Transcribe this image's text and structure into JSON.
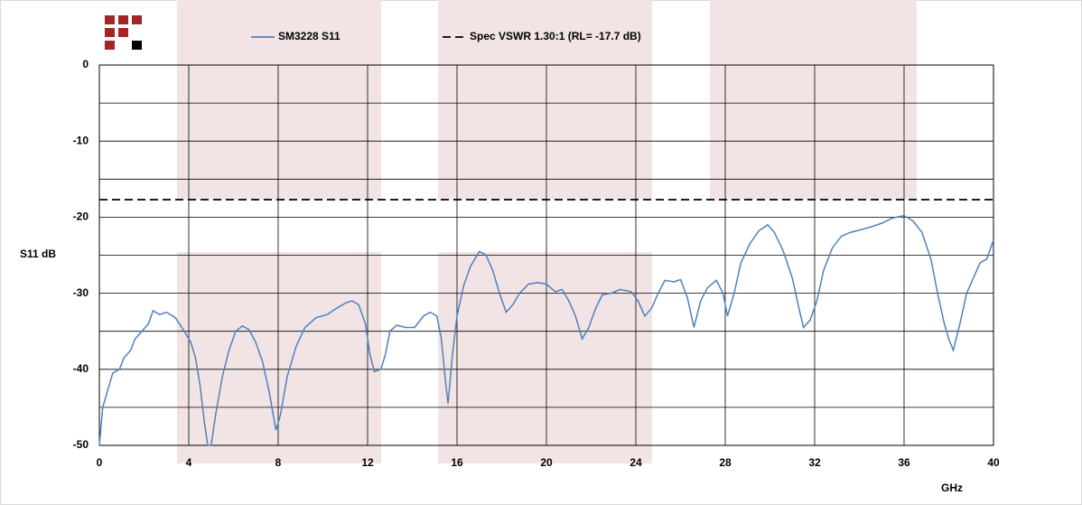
{
  "chart_data": {
    "type": "line",
    "y_label": "S11 dB",
    "x_label": "GHz",
    "xlim": [
      0,
      40
    ],
    "xticks": [
      0,
      4,
      8,
      12,
      16,
      20,
      24,
      28,
      32,
      36,
      40
    ],
    "ylim": [
      -50,
      0
    ],
    "yticks": [
      0,
      -10,
      -20,
      -30,
      -40,
      -50
    ],
    "y_minor_grid": [
      -5,
      -15,
      -25,
      -35,
      -45
    ],
    "grid": true,
    "series": [
      {
        "name": "SM3228 S11",
        "color": "#4f81bd",
        "dash": false,
        "x": [
          0,
          0.15,
          0.4,
          0.6,
          0.9,
          1.1,
          1.4,
          1.6,
          1.9,
          2.2,
          2.4,
          2.7,
          3.0,
          3.4,
          3.8,
          4.1,
          4.3,
          4.5,
          4.7,
          4.85,
          5.0,
          5.2,
          5.5,
          5.8,
          6.1,
          6.4,
          6.7,
          7.0,
          7.3,
          7.6,
          7.9,
          8.1,
          8.4,
          8.8,
          9.2,
          9.7,
          10.2,
          10.6,
          11.0,
          11.3,
          11.6,
          11.9,
          12.1,
          12.3,
          12.6,
          12.8,
          13.0,
          13.3,
          13.7,
          14.1,
          14.5,
          14.8,
          15.1,
          15.3,
          15.5,
          15.6,
          15.8,
          16.0,
          16.3,
          16.6,
          17.0,
          17.3,
          17.6,
          17.9,
          18.2,
          18.5,
          18.8,
          19.2,
          19.6,
          20.0,
          20.4,
          20.7,
          21.0,
          21.3,
          21.6,
          21.9,
          22.2,
          22.5,
          22.9,
          23.3,
          23.8,
          24.1,
          24.4,
          24.7,
          25.0,
          25.3,
          25.7,
          26.0,
          26.3,
          26.6,
          26.9,
          27.2,
          27.6,
          27.9,
          28.1,
          28.4,
          28.7,
          29.1,
          29.5,
          29.9,
          30.2,
          30.6,
          31.0,
          31.3,
          31.5,
          31.8,
          32.1,
          32.4,
          32.8,
          33.2,
          33.6,
          34.0,
          34.5,
          35.0,
          35.5,
          36.0,
          36.4,
          36.8,
          37.2,
          37.5,
          37.8,
          38.0,
          38.2,
          38.5,
          38.8,
          39.1,
          39.4,
          39.7,
          40
        ],
        "values": [
          -50,
          -45,
          -42.5,
          -40.5,
          -40,
          -38.5,
          -37.5,
          -36,
          -35,
          -34,
          -32.3,
          -32.8,
          -32.5,
          -33.2,
          -35,
          -36.5,
          -38.5,
          -42,
          -47,
          -50,
          -50,
          -46,
          -41,
          -37.5,
          -35,
          -34.3,
          -34.8,
          -36.5,
          -39,
          -43,
          -48,
          -46,
          -41,
          -37,
          -34.5,
          -33.2,
          -32.8,
          -32,
          -31.3,
          -31,
          -31.5,
          -34,
          -38,
          -40.3,
          -40,
          -38,
          -35,
          -34.2,
          -34.5,
          -34.5,
          -33,
          -32.5,
          -33,
          -36,
          -42,
          -44.5,
          -38,
          -33,
          -29,
          -26.5,
          -24.5,
          -25,
          -27,
          -30,
          -32.5,
          -31.5,
          -30,
          -28.8,
          -28.6,
          -28.8,
          -29.8,
          -29.5,
          -31,
          -33,
          -36,
          -34.5,
          -32,
          -30.2,
          -30,
          -29.5,
          -29.8,
          -31,
          -33,
          -32,
          -30,
          -28.3,
          -28.5,
          -28.2,
          -30.5,
          -34.5,
          -31,
          -29.3,
          -28.3,
          -30,
          -33,
          -30,
          -26,
          -23.5,
          -21.8,
          -21,
          -22,
          -24.5,
          -28,
          -32,
          -34.5,
          -33.5,
          -31,
          -27,
          -24,
          -22.5,
          -22,
          -21.7,
          -21.3,
          -20.8,
          -20.1,
          -19.8,
          -20.5,
          -22,
          -25.5,
          -30,
          -34,
          -36,
          -37.5,
          -34,
          -30,
          -28,
          -26,
          -25.5,
          -23
        ]
      },
      {
        "name": "Spec VSWR 1.30:1 (RL= -17.7 dB)",
        "color": "#000000",
        "dash": true,
        "x": [
          0,
          40
        ],
        "values": [
          -17.7,
          -17.7
        ]
      }
    ]
  }
}
